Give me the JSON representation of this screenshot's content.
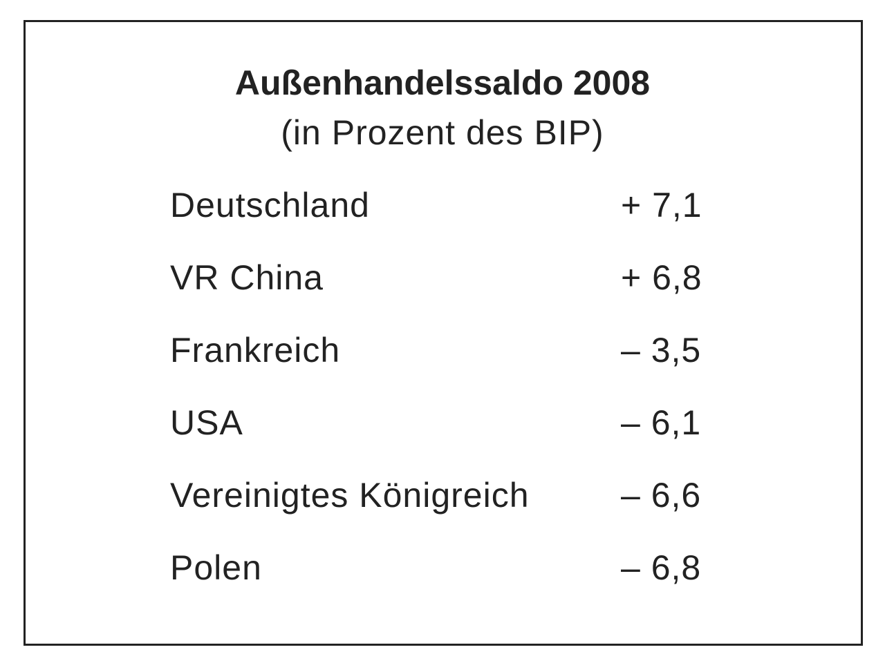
{
  "header": {
    "title": "Außenhandelssaldo 2008",
    "subtitle": "(in Prozent des BIP)"
  },
  "table": {
    "rows": [
      [
        "Deutschland",
        "+ 7,1"
      ],
      [
        "VR China",
        "+ 6,8"
      ],
      [
        "Frankreich",
        "– 3,5"
      ],
      [
        "USA",
        "– 6,1"
      ],
      [
        "Vereinigtes Königreich",
        "– 6,6"
      ],
      [
        "Polen",
        "– 6,8"
      ]
    ]
  }
}
